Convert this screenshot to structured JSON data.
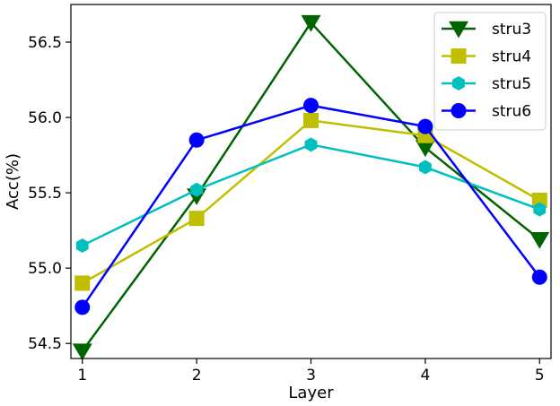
{
  "chart_data": {
    "type": "line",
    "title": "",
    "xlabel": "Layer",
    "ylabel": "Acc(%)",
    "x": [
      1,
      2,
      3,
      4,
      5
    ],
    "xlim": [
      0.9,
      5.1
    ],
    "ylim": [
      54.4,
      56.75
    ],
    "xticks": [
      1,
      2,
      3,
      4,
      5
    ],
    "yticks": [
      54.5,
      55.0,
      55.5,
      56.0,
      56.5
    ],
    "grid": false,
    "legend_position": "top-right",
    "series": [
      {
        "name": "stru3",
        "color": "#006400",
        "marker": "triangle-down",
        "values": [
          54.45,
          55.48,
          56.63,
          55.8,
          55.19
        ]
      },
      {
        "name": "stru4",
        "color": "#bfbf00",
        "marker": "square",
        "values": [
          54.9,
          55.33,
          55.98,
          55.88,
          55.45
        ]
      },
      {
        "name": "stru5",
        "color": "#00bfbf",
        "marker": "hexagon",
        "values": [
          55.15,
          55.52,
          55.82,
          55.67,
          55.39
        ]
      },
      {
        "name": "stru6",
        "color": "#0000ff",
        "marker": "circle",
        "values": [
          54.74,
          55.85,
          56.08,
          55.94,
          54.94
        ]
      }
    ]
  }
}
